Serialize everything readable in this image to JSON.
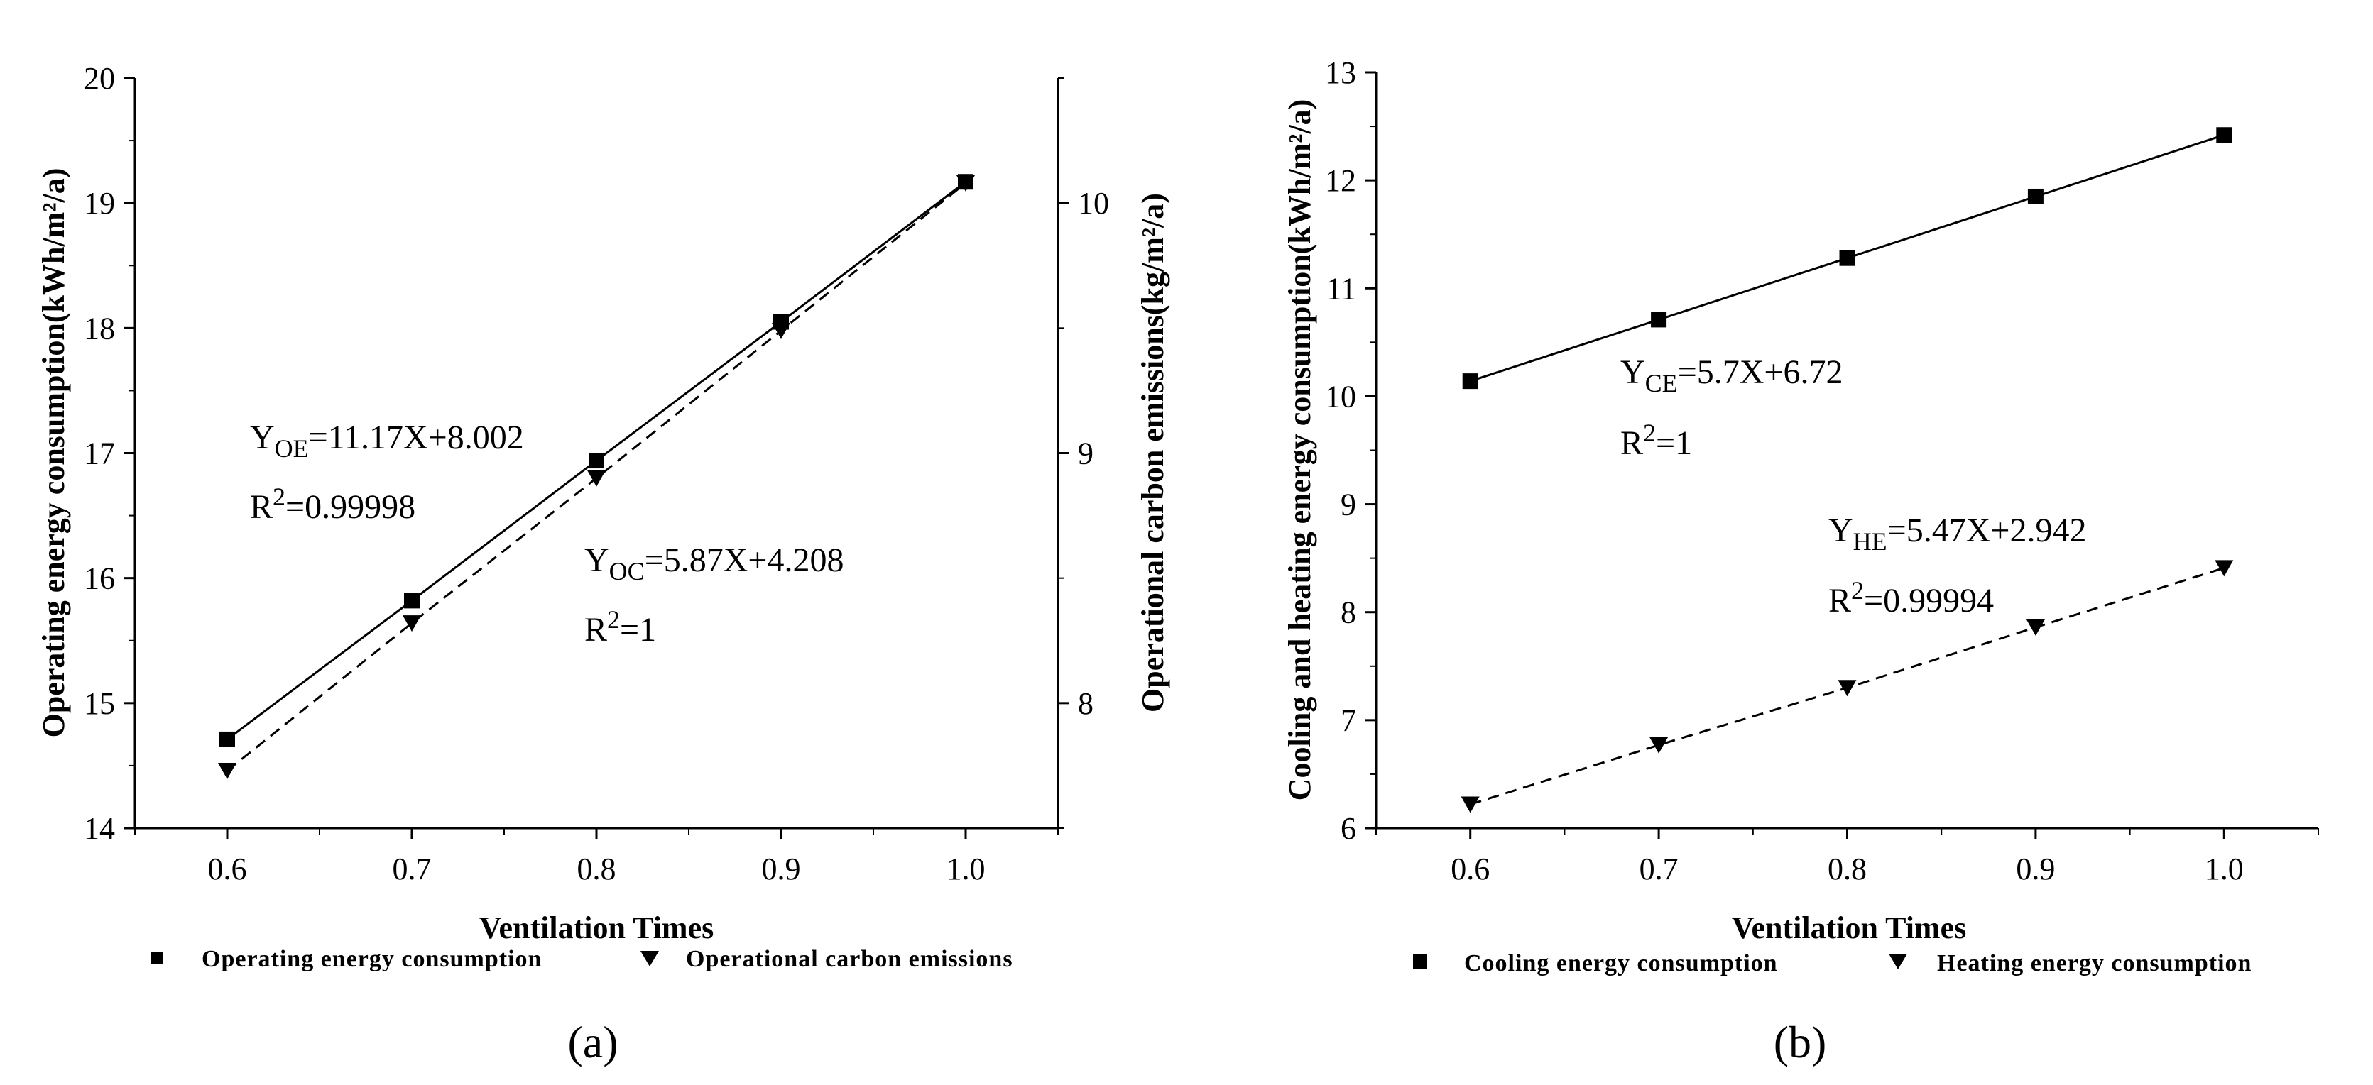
{
  "figure": {
    "panel_a_label": "(a)",
    "panel_b_label": "(b)"
  },
  "chart_data": [
    {
      "type": "line",
      "panel": "(a)",
      "xlabel": "Ventilation Times",
      "ylabel": "Operating energy consumption(kWh/m²/a)",
      "ylabel_right": "Operational carbon emissions(kg/m²/a)",
      "xlim": [
        0.55,
        1.05
      ],
      "ylim": [
        14,
        20
      ],
      "ylim_right": [
        7.5,
        10.5
      ],
      "x_ticks": [
        "0.6",
        "0.7",
        "0.8",
        "0.9",
        "1.0"
      ],
      "y_ticks": [
        "14",
        "15",
        "16",
        "17",
        "18",
        "19",
        "20"
      ],
      "y_ticks_right": [
        "8",
        "9",
        "10"
      ],
      "series": [
        {
          "name": "Operating energy consumption",
          "axis": "left",
          "marker": "square",
          "line": "solid",
          "x": [
            0.6,
            0.7,
            0.8,
            0.9,
            1.0
          ],
          "values": [
            14.71,
            15.82,
            16.94,
            18.05,
            19.17
          ]
        },
        {
          "name": "Operational carbon emissions",
          "axis": "right",
          "marker": "triangle-down",
          "line": "dashed",
          "x": [
            0.6,
            0.7,
            0.8,
            0.9,
            1.0
          ],
          "values": [
            7.73,
            8.32,
            8.9,
            9.49,
            10.08
          ]
        }
      ],
      "annotations": [
        {
          "id": "oe",
          "main": "Y",
          "sub": "OE",
          "rest": "=11.17X+8.002",
          "r2": "=0.99998"
        },
        {
          "id": "oc",
          "main": "Y",
          "sub": "OC",
          "rest": "=5.87X+4.208",
          "r2": "=1"
        }
      ]
    },
    {
      "type": "line",
      "panel": "(b)",
      "xlabel": "Ventilation Times",
      "ylabel": "Cooling and heating energy consumption(kWh/m²/a)",
      "xlim": [
        0.55,
        1.05
      ],
      "ylim": [
        6,
        13
      ],
      "x_ticks": [
        "0.6",
        "0.7",
        "0.8",
        "0.9",
        "1.0"
      ],
      "y_ticks": [
        "6",
        "7",
        "8",
        "9",
        "10",
        "11",
        "12",
        "13"
      ],
      "series": [
        {
          "name": "Cooling  energy consumption",
          "axis": "left",
          "marker": "square",
          "line": "solid",
          "x": [
            0.6,
            0.7,
            0.8,
            0.9,
            1.0
          ],
          "values": [
            10.14,
            10.71,
            11.28,
            11.85,
            12.42
          ]
        },
        {
          "name": "Heating energy consumption",
          "axis": "left",
          "marker": "triangle-down",
          "line": "dashed",
          "x": [
            0.6,
            0.7,
            0.8,
            0.9,
            1.0
          ],
          "values": [
            6.22,
            6.77,
            7.3,
            7.86,
            8.41
          ]
        }
      ],
      "annotations": [
        {
          "id": "ce",
          "main": "Y",
          "sub": "CE",
          "rest": "=5.7X+6.72",
          "r2": "=1"
        },
        {
          "id": "he",
          "main": "Y",
          "sub": "HE",
          "rest": "=5.47X+2.942",
          "r2": "=0.99994"
        }
      ]
    }
  ]
}
